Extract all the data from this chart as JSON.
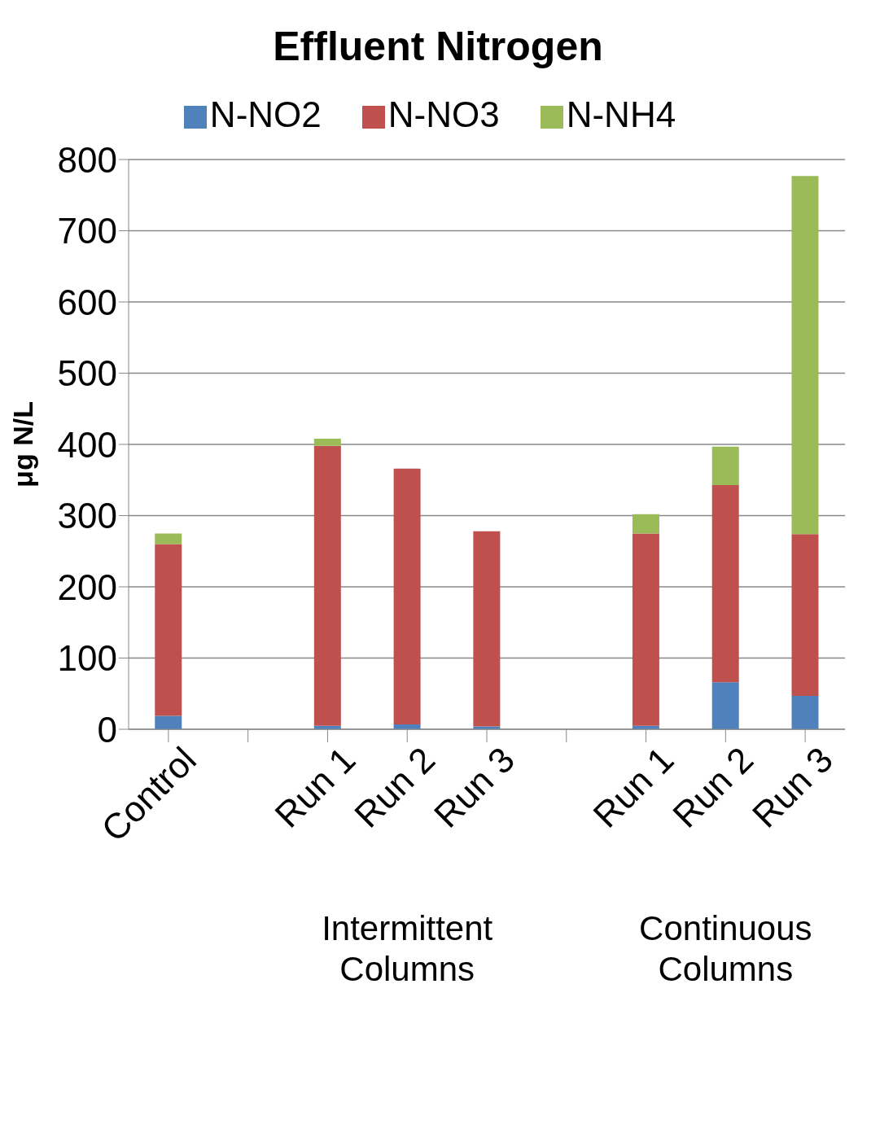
{
  "chart_data": {
    "type": "bar",
    "title": "Effluent Nitrogen",
    "ylabel": "μg N/L",
    "categories": [
      "Control",
      null,
      "Run 1",
      "Run 2",
      "Run 3",
      null,
      "Run 1",
      "Run 2",
      "Run 3"
    ],
    "series": [
      {
        "name": "N-NO2",
        "color": "#4f81bd",
        "values": [
          19,
          null,
          5,
          7,
          4,
          null,
          5,
          66,
          47
        ]
      },
      {
        "name": "N-NO3",
        "color": "#c0504d",
        "values": [
          241,
          null,
          393,
          359,
          274,
          null,
          270,
          277,
          227
        ]
      },
      {
        "name": "N-NH4",
        "color": "#9bbb59",
        "values": [
          15,
          null,
          10,
          0,
          0,
          null,
          27,
          54,
          503
        ]
      }
    ],
    "stacked": true,
    "ylim": [
      0,
      800
    ],
    "yticks": [
      0,
      100,
      200,
      300,
      400,
      500,
      600,
      700,
      800
    ],
    "grid": "y",
    "legend": "top",
    "annotations": [
      "Intermittent Columns",
      "Continuous Columns"
    ]
  }
}
